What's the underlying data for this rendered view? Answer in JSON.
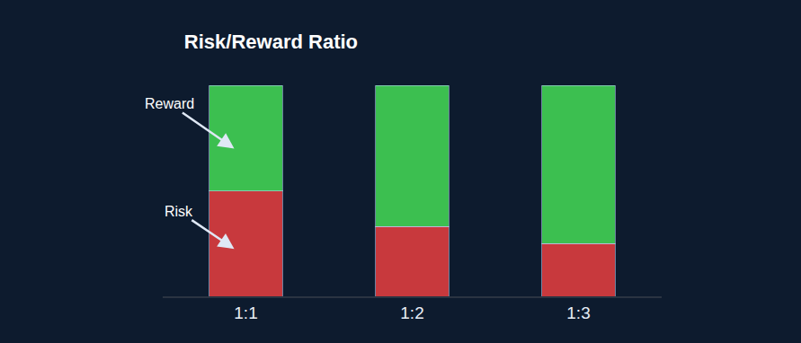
{
  "chart_data": {
    "type": "bar",
    "title": "Risk/Reward Ratio",
    "categories": [
      "1:1",
      "1:2",
      "1:3"
    ],
    "series": [
      {
        "name": "Risk",
        "color": "#c8393d",
        "values": [
          50,
          33,
          25
        ]
      },
      {
        "name": "Reward",
        "color": "#3cbf50",
        "values": [
          50,
          67,
          75
        ]
      }
    ],
    "stacked": true,
    "ylim": [
      0,
      100
    ],
    "grid": false,
    "tick_labels": "x"
  }
}
